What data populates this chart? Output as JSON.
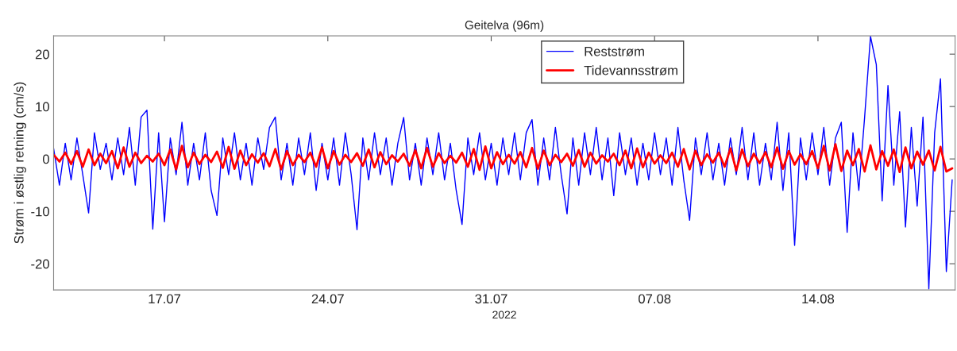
{
  "chart_data": {
    "type": "line",
    "title": "Geitelva (96m)",
    "xlabel": "2022",
    "ylabel": "Strøm i østlig retning (cm/s)",
    "x": [
      "2022-07-12T06:00",
      "2022-07-12T12:00",
      "2022-07-12T18:00",
      "2022-07-13T00:00",
      "2022-07-13T06:00",
      "2022-07-13T12:00",
      "2022-07-13T18:00",
      "2022-07-14T00:00",
      "2022-07-14T06:00",
      "2022-07-14T12:00",
      "2022-07-14T18:00",
      "2022-07-15T00:00",
      "2022-07-15T06:00",
      "2022-07-15T12:00",
      "2022-07-15T18:00",
      "2022-07-16T00:00",
      "2022-07-16T06:00",
      "2022-07-16T12:00",
      "2022-07-16T18:00",
      "2022-07-17T00:00",
      "2022-07-17T06:00",
      "2022-07-17T12:00",
      "2022-07-17T18:00",
      "2022-07-18T00:00",
      "2022-07-18T06:00",
      "2022-07-18T12:00",
      "2022-07-18T18:00",
      "2022-07-19T00:00",
      "2022-07-19T06:00",
      "2022-07-19T12:00",
      "2022-07-19T18:00",
      "2022-07-20T00:00",
      "2022-07-20T06:00",
      "2022-07-20T12:00",
      "2022-07-20T18:00",
      "2022-07-21T00:00",
      "2022-07-21T06:00",
      "2022-07-21T12:00",
      "2022-07-21T18:00",
      "2022-07-22T00:00",
      "2022-07-22T06:00",
      "2022-07-22T12:00",
      "2022-07-22T18:00",
      "2022-07-23T00:00",
      "2022-07-23T06:00",
      "2022-07-23T12:00",
      "2022-07-23T18:00",
      "2022-07-24T00:00",
      "2022-07-24T06:00",
      "2022-07-24T12:00",
      "2022-07-24T18:00",
      "2022-07-25T00:00",
      "2022-07-25T06:00",
      "2022-07-25T12:00",
      "2022-07-25T18:00",
      "2022-07-26T00:00",
      "2022-07-26T06:00",
      "2022-07-26T12:00",
      "2022-07-26T18:00",
      "2022-07-27T00:00",
      "2022-07-27T06:00",
      "2022-07-27T12:00",
      "2022-07-27T18:00",
      "2022-07-28T00:00",
      "2022-07-28T06:00",
      "2022-07-28T12:00",
      "2022-07-28T18:00",
      "2022-07-29T00:00",
      "2022-07-29T06:00",
      "2022-07-29T12:00",
      "2022-07-29T18:00",
      "2022-07-30T00:00",
      "2022-07-30T06:00",
      "2022-07-30T12:00",
      "2022-07-30T18:00",
      "2022-07-31T00:00",
      "2022-07-31T06:00",
      "2022-07-31T12:00",
      "2022-07-31T18:00",
      "2022-08-01T00:00",
      "2022-08-01T06:00",
      "2022-08-01T12:00",
      "2022-08-01T18:00",
      "2022-08-02T00:00",
      "2022-08-02T06:00",
      "2022-08-02T12:00",
      "2022-08-02T18:00",
      "2022-08-03T00:00",
      "2022-08-03T06:00",
      "2022-08-03T12:00",
      "2022-08-03T18:00",
      "2022-08-04T00:00",
      "2022-08-04T06:00",
      "2022-08-04T12:00",
      "2022-08-04T18:00",
      "2022-08-05T00:00",
      "2022-08-05T06:00",
      "2022-08-05T12:00",
      "2022-08-05T18:00",
      "2022-08-06T00:00",
      "2022-08-06T06:00",
      "2022-08-06T12:00",
      "2022-08-06T18:00",
      "2022-08-07T00:00",
      "2022-08-07T06:00",
      "2022-08-07T12:00",
      "2022-08-07T18:00",
      "2022-08-08T00:00",
      "2022-08-08T06:00",
      "2022-08-08T12:00",
      "2022-08-08T18:00",
      "2022-08-09T00:00",
      "2022-08-09T06:00",
      "2022-08-09T12:00",
      "2022-08-09T18:00",
      "2022-08-10T00:00",
      "2022-08-10T06:00",
      "2022-08-10T12:00",
      "2022-08-10T18:00",
      "2022-08-11T00:00",
      "2022-08-11T06:00",
      "2022-08-11T12:00",
      "2022-08-11T18:00",
      "2022-08-12T00:00",
      "2022-08-12T06:00",
      "2022-08-12T12:00",
      "2022-08-12T18:00",
      "2022-08-13T00:00",
      "2022-08-13T06:00",
      "2022-08-13T12:00",
      "2022-08-13T18:00",
      "2022-08-14T00:00",
      "2022-08-14T06:00",
      "2022-08-14T12:00",
      "2022-08-14T18:00",
      "2022-08-15T00:00",
      "2022-08-15T06:00",
      "2022-08-15T12:00",
      "2022-08-15T18:00",
      "2022-08-16T00:00",
      "2022-08-16T06:00",
      "2022-08-16T12:00",
      "2022-08-16T18:00",
      "2022-08-17T00:00",
      "2022-08-17T06:00",
      "2022-08-17T12:00",
      "2022-08-17T18:00",
      "2022-08-18T00:00",
      "2022-08-18T06:00",
      "2022-08-18T12:00",
      "2022-08-18T18:00",
      "2022-08-19T00:00",
      "2022-08-19T06:00",
      "2022-08-19T12:00",
      "2022-08-19T18:00"
    ],
    "series": [
      {
        "name": "Reststrøm",
        "color": "#0000ff",
        "values": [
          2,
          -5,
          3,
          -4,
          4,
          -3,
          -10.3,
          5,
          -2,
          3,
          -4,
          4,
          -3,
          6,
          -5,
          8,
          9.3,
          -13.4,
          5,
          -12,
          4,
          -3,
          7,
          -5,
          3,
          -4,
          5,
          -6,
          -10.8,
          4,
          -3,
          5,
          -4,
          3,
          -5,
          4,
          -2,
          6,
          8,
          -4,
          3,
          -5,
          4,
          -3,
          5,
          -6,
          3,
          -4,
          4,
          -5,
          5,
          -3,
          -13.5,
          4,
          -4,
          5,
          -3,
          4,
          -5,
          3,
          7.9,
          -4,
          3,
          -5,
          4,
          -3,
          5,
          -4,
          3,
          -6,
          -12.5,
          4,
          -3,
          5,
          -4,
          3,
          -5,
          4,
          -3,
          5,
          -4,
          5,
          7.5,
          -5,
          4,
          -4,
          6,
          -3,
          -10.5,
          4,
          -5,
          5,
          -3,
          6,
          -4,
          4,
          -7,
          5,
          -3,
          4,
          -5,
          3,
          -4,
          5,
          -3,
          4,
          -5,
          6,
          -4,
          -11.7,
          4,
          -3,
          5,
          -4,
          3,
          -5,
          4,
          -3,
          6,
          -4,
          5,
          -5,
          3,
          -4,
          7,
          -6,
          5,
          -16.5,
          4,
          -4,
          5,
          -3,
          6,
          -5,
          4,
          7,
          -14,
          5,
          -6,
          8,
          23.4,
          18,
          -8,
          14,
          -5,
          9,
          -13,
          6,
          -9,
          8,
          -24.8,
          5,
          15.3,
          -21.5,
          -4
        ]
      },
      {
        "name": "Tidevannsstrøm",
        "color": "#ff0000",
        "values": [
          0.8,
          -0.5,
          1.2,
          -1,
          1.5,
          -1.5,
          1.8,
          -1.2,
          1,
          -0.8,
          1.5,
          -1.8,
          2.2,
          -1.5,
          1.2,
          -0.8,
          0.6,
          -0.5,
          1,
          -1.2,
          1.8,
          -2,
          2.5,
          -1.6,
          1.2,
          -1,
          0.8,
          -0.6,
          1.4,
          -1.7,
          2.3,
          -1.9,
          1.6,
          -1.2,
          0.9,
          -0.7,
          1.1,
          -1.4,
          1.9,
          -2,
          1.5,
          -1.2,
          0.8,
          -0.6,
          1.2,
          -1.5,
          2.2,
          -1.8,
          1.5,
          -1.1,
          0.8,
          -0.6,
          1.1,
          -1.3,
          1.8,
          -1.6,
          1.3,
          -1,
          0.7,
          -0.5,
          1,
          -1.3,
          1.7,
          -1.8,
          2.1,
          -1.5,
          1.1,
          -0.8,
          0.6,
          -0.7,
          1.2,
          -1.5,
          1.9,
          -2.1,
          2.4,
          -1.8,
          1.3,
          -1,
          0.8,
          -0.9,
          1.3,
          -1.6,
          2.1,
          -1.9,
          1.6,
          -1.2,
          0.8,
          -0.6,
          1,
          -1.3,
          1.7,
          -1.5,
          1.2,
          -0.9,
          0.7,
          -0.5,
          1,
          -1.2,
          1.6,
          -1.8,
          2,
          -1.6,
          1.2,
          -0.9,
          0.7,
          -0.8,
          1.2,
          -1.5,
          1.9,
          -2,
          1.6,
          -1.2,
          0.9,
          -0.7,
          1.2,
          -1.5,
          2,
          -2.2,
          1.8,
          -1.4,
          1,
          -0.8,
          1.3,
          -1.6,
          2.2,
          -1.9,
          1.5,
          -1.1,
          0.9,
          -1,
          1.5,
          -1.8,
          2.5,
          -2.2,
          2.8,
          -2.3,
          1.6,
          -1.2,
          1.9,
          -2.4,
          2.6,
          -2,
          1.5,
          -1.3,
          1.8,
          -2.5,
          2.2,
          -1.8,
          1.4,
          -1.1,
          1.6,
          -2.2,
          2.3,
          -2.4,
          -1.8
        ]
      }
    ],
    "xlim": [
      "2022-07-12T06:00",
      "2022-08-19T21:00"
    ],
    "xticks": [
      {
        "value": "2022-07-17",
        "label": "17.07"
      },
      {
        "value": "2022-07-24",
        "label": "24.07"
      },
      {
        "value": "2022-07-31",
        "label": "31.07"
      },
      {
        "value": "2022-08-07",
        "label": "07.08"
      },
      {
        "value": "2022-08-14",
        "label": "14.08"
      }
    ],
    "ylim": [
      -25,
      23.5
    ],
    "yticks": [
      -20,
      -10,
      0,
      10,
      20
    ],
    "legend": "top",
    "grid": false
  }
}
